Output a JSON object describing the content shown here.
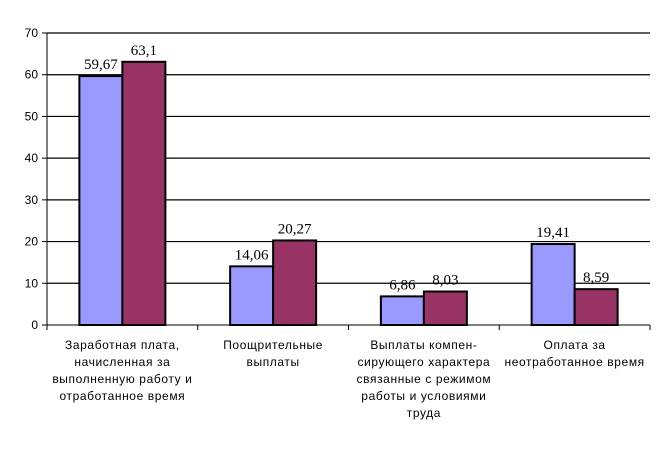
{
  "chart_data": {
    "type": "bar",
    "categories": [
      "Заработная плата,\nначисленная за\nвыполненную работу и\nотработанное время",
      "Поощрительные\nвыплаты",
      "Выплаты компен-\nсирующего характера\nсвязанные с режимом\nработы и условиями\nтруда",
      "Оплата за\nнеотработанное время"
    ],
    "series": [
      {
        "values": [
          59.67,
          14.06,
          6.86,
          19.41
        ],
        "color": "#9999ff"
      },
      {
        "values": [
          63.1,
          20.27,
          8.03,
          8.59
        ],
        "color": "#993366"
      }
    ],
    "data_labels": [
      [
        "59,67",
        "14,06",
        "6,86",
        "19,41"
      ],
      [
        "63,1",
        "20,27",
        "8,03",
        "8,59"
      ]
    ],
    "y_ticks": [
      "0",
      "10",
      "20",
      "30",
      "40",
      "50",
      "60",
      "70"
    ],
    "ylim": [
      0,
      70
    ],
    "grid": true,
    "legend": "none",
    "title": "",
    "xlabel": "",
    "ylabel": ""
  }
}
